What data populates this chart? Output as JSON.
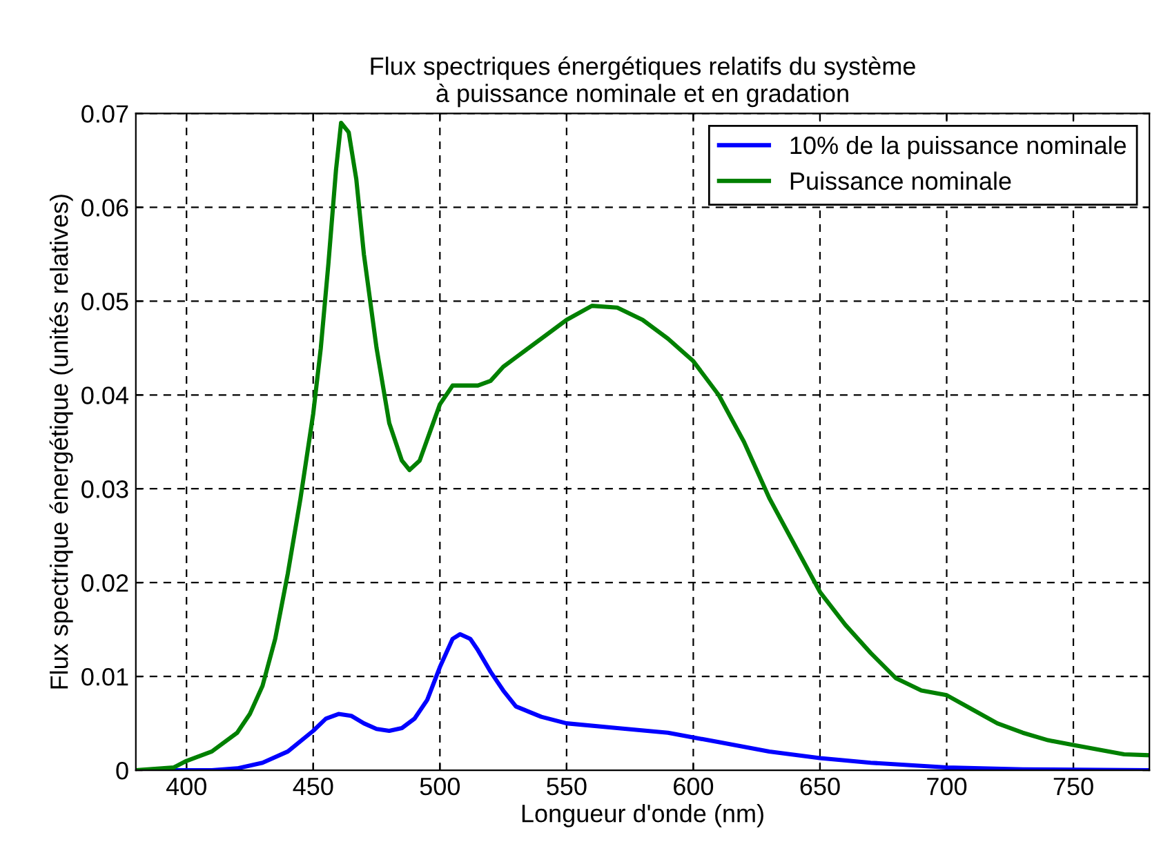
{
  "chart_data": {
    "type": "line",
    "title": "Flux spectriques énergétiques relatifs du système\nà puissance nominale et en gradation",
    "xlabel": "Longueur d'onde (nm)",
    "ylabel": "Flux spectrique énergétique (unités relatives)",
    "xlim": [
      380,
      780
    ],
    "ylim": [
      0,
      0.07
    ],
    "xticks": [
      400,
      450,
      500,
      550,
      600,
      650,
      700,
      750
    ],
    "yticks": [
      0,
      0.01,
      0.02,
      0.03,
      0.04,
      0.05,
      0.06,
      0.07
    ],
    "grid": true,
    "legend": "top right",
    "line_style": "solid",
    "marker": "none",
    "series": [
      {
        "name": "10% de la puissance nominale",
        "color": "#0000ff",
        "x": [
          380,
          410,
          420,
          430,
          440,
          450,
          455,
          460,
          465,
          470,
          475,
          480,
          485,
          490,
          495,
          500,
          505,
          508,
          512,
          515,
          520,
          525,
          530,
          540,
          550,
          570,
          590,
          610,
          630,
          650,
          670,
          700,
          730,
          780
        ],
        "values": [
          0,
          0,
          0.0002,
          0.0008,
          0.002,
          0.0042,
          0.0055,
          0.006,
          0.0058,
          0.005,
          0.0044,
          0.0042,
          0.0045,
          0.0055,
          0.0075,
          0.011,
          0.014,
          0.0145,
          0.014,
          0.0128,
          0.0105,
          0.0085,
          0.0068,
          0.0057,
          0.005,
          0.0045,
          0.004,
          0.003,
          0.002,
          0.0013,
          0.0008,
          0.0003,
          0.0001,
          0
        ]
      },
      {
        "name": "Puissance nominale",
        "color": "#008000",
        "x": [
          380,
          395,
          400,
          410,
          420,
          425,
          430,
          435,
          440,
          445,
          450,
          453,
          456,
          459,
          461,
          464,
          467,
          470,
          475,
          480,
          485,
          488,
          492,
          496,
          500,
          505,
          510,
          515,
          520,
          525,
          530,
          540,
          550,
          560,
          570,
          580,
          590,
          600,
          610,
          620,
          630,
          640,
          650,
          660,
          670,
          680,
          690,
          700,
          710,
          720,
          730,
          740,
          750,
          760,
          770,
          780
        ],
        "values": [
          0,
          0.0003,
          0.001,
          0.002,
          0.004,
          0.006,
          0.009,
          0.014,
          0.021,
          0.029,
          0.038,
          0.045,
          0.054,
          0.064,
          0.069,
          0.068,
          0.063,
          0.055,
          0.045,
          0.037,
          0.033,
          0.032,
          0.033,
          0.036,
          0.039,
          0.041,
          0.041,
          0.041,
          0.0415,
          0.043,
          0.044,
          0.046,
          0.048,
          0.0495,
          0.0493,
          0.048,
          0.046,
          0.0436,
          0.04,
          0.035,
          0.029,
          0.024,
          0.019,
          0.0155,
          0.0125,
          0.0098,
          0.0085,
          0.008,
          0.0065,
          0.005,
          0.004,
          0.0032,
          0.0027,
          0.0022,
          0.0017,
          0.0016
        ]
      }
    ]
  }
}
